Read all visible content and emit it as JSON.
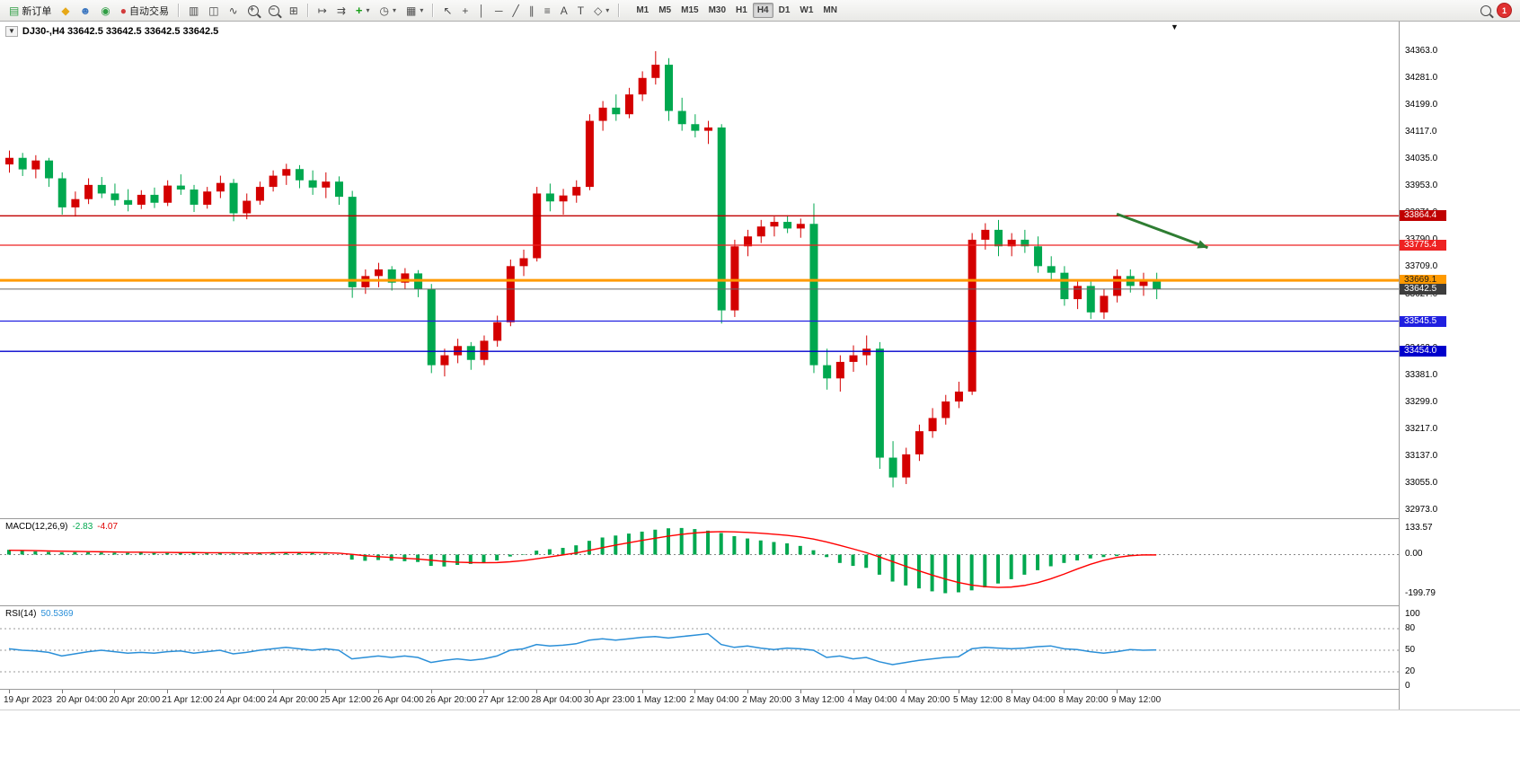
{
  "toolbar": {
    "new_order_label": "新订单",
    "autotrading_label": "自动交易",
    "badge_count": "1",
    "timeframes": [
      "M1",
      "M5",
      "M15",
      "M30",
      "H1",
      "H4",
      "D1",
      "W1",
      "MN"
    ],
    "active_timeframe": "H4",
    "glyphs": {
      "new_order": "▤",
      "mql5": "◆",
      "support": "☻",
      "community": "◉",
      "autotrading": "●",
      "bar_chart": "▥",
      "candle_chart": "◫",
      "line_chart": "∿",
      "zoom_in_sign": "+",
      "zoom_out_sign": "−",
      "tile": "⊞",
      "autoscroll": "↦",
      "shift": "⇉",
      "add_indicator": "+",
      "period": "◷",
      "template": "▦",
      "cursor": "↖",
      "crosshair": "+",
      "vline": "│",
      "hline": "─",
      "trendline": "╱",
      "channel": "∥",
      "fibonacci": "≡",
      "text": "A",
      "label": "T",
      "shapes": "◇",
      "caret": "▾"
    }
  },
  "chart": {
    "symbol_info": "DJ30-,H4  33642.5 33642.5 33642.5 33642.5",
    "collapse_marker": "▼",
    "scroll_marker": "▼"
  },
  "macd": {
    "label": "MACD(12,26,9)",
    "value_main": "-2.83",
    "value_signal": "-4.07",
    "scale_labels": [
      "133.57",
      "0.00",
      "-199.79"
    ]
  },
  "rsi": {
    "label": "RSI(14)",
    "value": "50.5369",
    "scale_labels": [
      "100",
      "80",
      "50",
      "20",
      "0"
    ],
    "levels": [
      80,
      50,
      20
    ]
  },
  "price_axis_labels": [
    "34363.0",
    "34281.0",
    "34199.0",
    "34117.0",
    "34035.0",
    "33953.0",
    "33871.0",
    "33790.0",
    "33709.0",
    "33627.0",
    "33545.0",
    "33463.0",
    "33381.0",
    "33299.0",
    "33217.0",
    "33137.0",
    "33055.0",
    "32973.0"
  ],
  "time_axis_labels": [
    "19 Apr 2023",
    "20 Apr 04:00",
    "20 Apr 20:00",
    "21 Apr 12:00",
    "24 Apr 04:00",
    "24 Apr 20:00",
    "25 Apr 12:00",
    "26 Apr 04:00",
    "26 Apr 20:00",
    "27 Apr 12:00",
    "28 Apr 04:00",
    "30 Apr 23:00",
    "1 May 12:00",
    "2 May 04:00",
    "2 May 20:00",
    "3 May 12:00",
    "4 May 04:00",
    "4 May 20:00",
    "5 May 12:00",
    "8 May 04:00",
    "8 May 20:00",
    "9 May 12:00"
  ],
  "levels": [
    {
      "name": "resistance-upper",
      "price": 33864.4,
      "label": "33864.4",
      "color": "#c00000",
      "width": 1.4,
      "dash": "",
      "tag_bg": "#c00000",
      "tag_fg": "#ffffff"
    },
    {
      "name": "resistance-lower",
      "price": 33775.4,
      "label": "33775.4",
      "color": "#ee2222",
      "width": 1.2,
      "dash": "",
      "tag_bg": "#ee2222",
      "tag_fg": "#ffffff"
    },
    {
      "name": "pivot-orange",
      "price": 33669.1,
      "label": "33669.1",
      "color": "#ff9a00",
      "width": 3,
      "dash": "",
      "tag_bg": "#ff9a00",
      "tag_fg": "#1a1a1a"
    },
    {
      "name": "bid-price",
      "price": 33642.5,
      "label": "33642.5",
      "color": "#666666",
      "width": 1,
      "dash": "",
      "tag_bg": "#3d3d3d",
      "tag_fg": "#ffffff"
    },
    {
      "name": "support-upper",
      "price": 33545.5,
      "label": "33545.5",
      "color": "#2020e0",
      "width": 1.2,
      "dash": "",
      "tag_bg": "#2020e0",
      "tag_fg": "#ffffff"
    },
    {
      "name": "support-lower",
      "price": 33454.0,
      "label": "33454.0",
      "color": "#0000cc",
      "width": 1.4,
      "dash": "",
      "tag_bg": "#0000cc",
      "tag_fg": "#ffffff"
    }
  ],
  "chart_data": {
    "type": "candlestick",
    "symbol": "DJ30-",
    "timeframe": "H4",
    "title": "DJ30-,H4",
    "current_price": 33642.5,
    "price_range": [
      32973.0,
      34363.0
    ],
    "bull_color": "#d40000",
    "bear_color": "#00a84f",
    "bars_per_label": 4,
    "ohlc": [
      [
        34020,
        34062,
        33995,
        34040
      ],
      [
        34040,
        34055,
        33985,
        34005
      ],
      [
        34005,
        34048,
        33978,
        34032
      ],
      [
        34032,
        34040,
        33952,
        33978
      ],
      [
        33978,
        33996,
        33868,
        33890
      ],
      [
        33890,
        33938,
        33862,
        33915
      ],
      [
        33915,
        33978,
        33900,
        33958
      ],
      [
        33958,
        33982,
        33918,
        33932
      ],
      [
        33932,
        33962,
        33895,
        33912
      ],
      [
        33912,
        33945,
        33878,
        33898
      ],
      [
        33898,
        33942,
        33885,
        33928
      ],
      [
        33928,
        33950,
        33888,
        33904
      ],
      [
        33904,
        33972,
        33894,
        33956
      ],
      [
        33956,
        33990,
        33928,
        33944
      ],
      [
        33944,
        33958,
        33876,
        33898
      ],
      [
        33898,
        33952,
        33886,
        33938
      ],
      [
        33938,
        33986,
        33918,
        33964
      ],
      [
        33964,
        33976,
        33848,
        33872
      ],
      [
        33872,
        33932,
        33854,
        33910
      ],
      [
        33910,
        33968,
        33898,
        33952
      ],
      [
        33952,
        34002,
        33938,
        33986
      ],
      [
        33986,
        34022,
        33958,
        34006
      ],
      [
        34006,
        34018,
        33948,
        33972
      ],
      [
        33972,
        34002,
        33928,
        33950
      ],
      [
        33950,
        33996,
        33918,
        33968
      ],
      [
        33968,
        33984,
        33898,
        33922
      ],
      [
        33922,
        33940,
        33616,
        33648
      ],
      [
        33648,
        33702,
        33628,
        33682
      ],
      [
        33682,
        33722,
        33648,
        33702
      ],
      [
        33702,
        33712,
        33638,
        33662
      ],
      [
        33662,
        33706,
        33642,
        33690
      ],
      [
        33690,
        33700,
        33618,
        33642
      ],
      [
        33642,
        33658,
        33388,
        33412
      ],
      [
        33412,
        33462,
        33378,
        33442
      ],
      [
        33442,
        33492,
        33418,
        33470
      ],
      [
        33470,
        33482,
        33398,
        33428
      ],
      [
        33428,
        33502,
        33412,
        33486
      ],
      [
        33486,
        33562,
        33468,
        33542
      ],
      [
        33542,
        33732,
        33530,
        33712
      ],
      [
        33712,
        33762,
        33682,
        33736
      ],
      [
        33736,
        33952,
        33726,
        33932
      ],
      [
        33932,
        33962,
        33878,
        33908
      ],
      [
        33908,
        33946,
        33868,
        33926
      ],
      [
        33926,
        33972,
        33904,
        33952
      ],
      [
        33952,
        34172,
        33942,
        34152
      ],
      [
        34152,
        34212,
        34122,
        34192
      ],
      [
        34192,
        34232,
        34152,
        34172
      ],
      [
        34172,
        34252,
        34160,
        34232
      ],
      [
        34232,
        34302,
        34212,
        34282
      ],
      [
        34282,
        34363,
        34262,
        34322
      ],
      [
        34322,
        34342,
        34152,
        34182
      ],
      [
        34182,
        34222,
        34122,
        34142
      ],
      [
        34142,
        34172,
        34102,
        34122
      ],
      [
        34122,
        34152,
        34082,
        34132
      ],
      [
        34132,
        34142,
        33538,
        33578
      ],
      [
        33578,
        33792,
        33558,
        33772
      ],
      [
        33772,
        33822,
        33742,
        33802
      ],
      [
        33802,
        33852,
        33782,
        33832
      ],
      [
        33832,
        33862,
        33802,
        33846
      ],
      [
        33846,
        33866,
        33812,
        33826
      ],
      [
        33826,
        33856,
        33798,
        33840
      ],
      [
        33840,
        33902,
        33388,
        33412
      ],
      [
        33412,
        33462,
        33338,
        33372
      ],
      [
        33372,
        33442,
        33332,
        33422
      ],
      [
        33422,
        33472,
        33392,
        33442
      ],
      [
        33442,
        33502,
        33412,
        33462
      ],
      [
        33462,
        33482,
        33098,
        33132
      ],
      [
        33132,
        33182,
        33042,
        33072
      ],
      [
        33072,
        33162,
        33052,
        33142
      ],
      [
        33142,
        33232,
        33122,
        33212
      ],
      [
        33212,
        33282,
        33192,
        33252
      ],
      [
        33252,
        33322,
        33232,
        33302
      ],
      [
        33302,
        33362,
        33282,
        33332
      ],
      [
        33332,
        33812,
        33322,
        33792
      ],
      [
        33792,
        33842,
        33762,
        33822
      ],
      [
        33822,
        33852,
        33742,
        33772
      ],
      [
        33772,
        33812,
        33742,
        33792
      ],
      [
        33792,
        33822,
        33752,
        33772
      ],
      [
        33772,
        33802,
        33692,
        33712
      ],
      [
        33712,
        33742,
        33672,
        33692
      ],
      [
        33692,
        33712,
        33592,
        33612
      ],
      [
        33612,
        33672,
        33582,
        33652
      ],
      [
        33652,
        33672,
        33552,
        33572
      ],
      [
        33572,
        33642,
        33552,
        33622
      ],
      [
        33622,
        33702,
        33602,
        33682
      ],
      [
        33682,
        33702,
        33632,
        33652
      ],
      [
        33652,
        33692,
        33622,
        33672
      ],
      [
        33672,
        33692,
        33612,
        33642.5
      ]
    ],
    "indicators": [
      {
        "name": "MACD",
        "params": "12,26,9",
        "range": [
          -199.79,
          133.57
        ],
        "histogram_color": "#00a84f",
        "signal_color": "#ff0000",
        "histogram": [
          22,
          18,
          14,
          11,
          9,
          10,
          9,
          8,
          7,
          6,
          7,
          6,
          6,
          7,
          5,
          4,
          5,
          3,
          4,
          7,
          9,
          11,
          8,
          5,
          3,
          -3,
          -28,
          -34,
          -30,
          -33,
          -36,
          -40,
          -60,
          -63,
          -55,
          -50,
          -45,
          -32,
          -12,
          0,
          18,
          25,
          32,
          45,
          68,
          85,
          95,
          105,
          115,
          125,
          132,
          133.57,
          128,
          120,
          108,
          92,
          80,
          70,
          62,
          55,
          42,
          20,
          -15,
          -45,
          -60,
          -70,
          -105,
          -140,
          -160,
          -175,
          -190,
          -199.79,
          -195,
          -185,
          -170,
          -150,
          -128,
          -105,
          -82,
          -62,
          -45,
          -32,
          -22,
          -15,
          -10,
          -6,
          -4,
          -2.83
        ],
        "signal": [
          20,
          19,
          18,
          16,
          15,
          14,
          13,
          12,
          11,
          10,
          10,
          9,
          9,
          8,
          8,
          7,
          7,
          7,
          6,
          6,
          7,
          8,
          8,
          8,
          7,
          5,
          -1,
          -8,
          -13,
          -17,
          -21,
          -25,
          -31,
          -37,
          -41,
          -43,
          -44,
          -43,
          -39,
          -33,
          -24,
          -14,
          -4,
          6,
          19,
          33,
          46,
          58,
          70,
          81,
          92,
          101,
          108,
          113,
          115,
          114,
          111,
          107,
          102,
          96,
          88,
          77,
          62,
          45,
          27,
          8,
          -14,
          -38,
          -62,
          -85,
          -107,
          -127,
          -145,
          -158,
          -166,
          -170,
          -168,
          -160,
          -146,
          -126,
          -102,
          -76,
          -52,
          -32,
          -17,
          -8,
          -4,
          -4.07
        ]
      },
      {
        "name": "RSI",
        "params": "14",
        "range": [
          0,
          100
        ],
        "color": "#2a8fd8",
        "values": [
          52,
          50,
          49,
          47,
          42,
          45,
          48,
          50,
          48,
          46,
          47,
          46,
          48,
          49,
          46,
          48,
          50,
          45,
          47,
          50,
          52,
          54,
          52,
          50,
          52,
          50,
          38,
          40,
          42,
          40,
          42,
          40,
          33,
          36,
          38,
          36,
          38,
          42,
          50,
          52,
          58,
          56,
          57,
          59,
          64,
          66,
          64,
          66,
          68,
          69,
          67,
          69,
          71,
          73,
          58,
          54,
          56,
          53,
          51,
          53,
          52,
          50,
          40,
          42,
          38,
          40,
          34,
          30,
          33,
          36,
          38,
          40,
          41,
          52,
          54,
          53,
          52,
          53,
          55,
          56,
          52,
          51,
          48,
          46,
          48,
          51,
          50,
          50.5369
        ]
      }
    ],
    "annotation_arrow": {
      "from": {
        "bar": 84,
        "price": 33870
      },
      "to": {
        "bar": 90.9,
        "price": 33768
      },
      "color": "#2e7d32",
      "width": 3
    }
  }
}
